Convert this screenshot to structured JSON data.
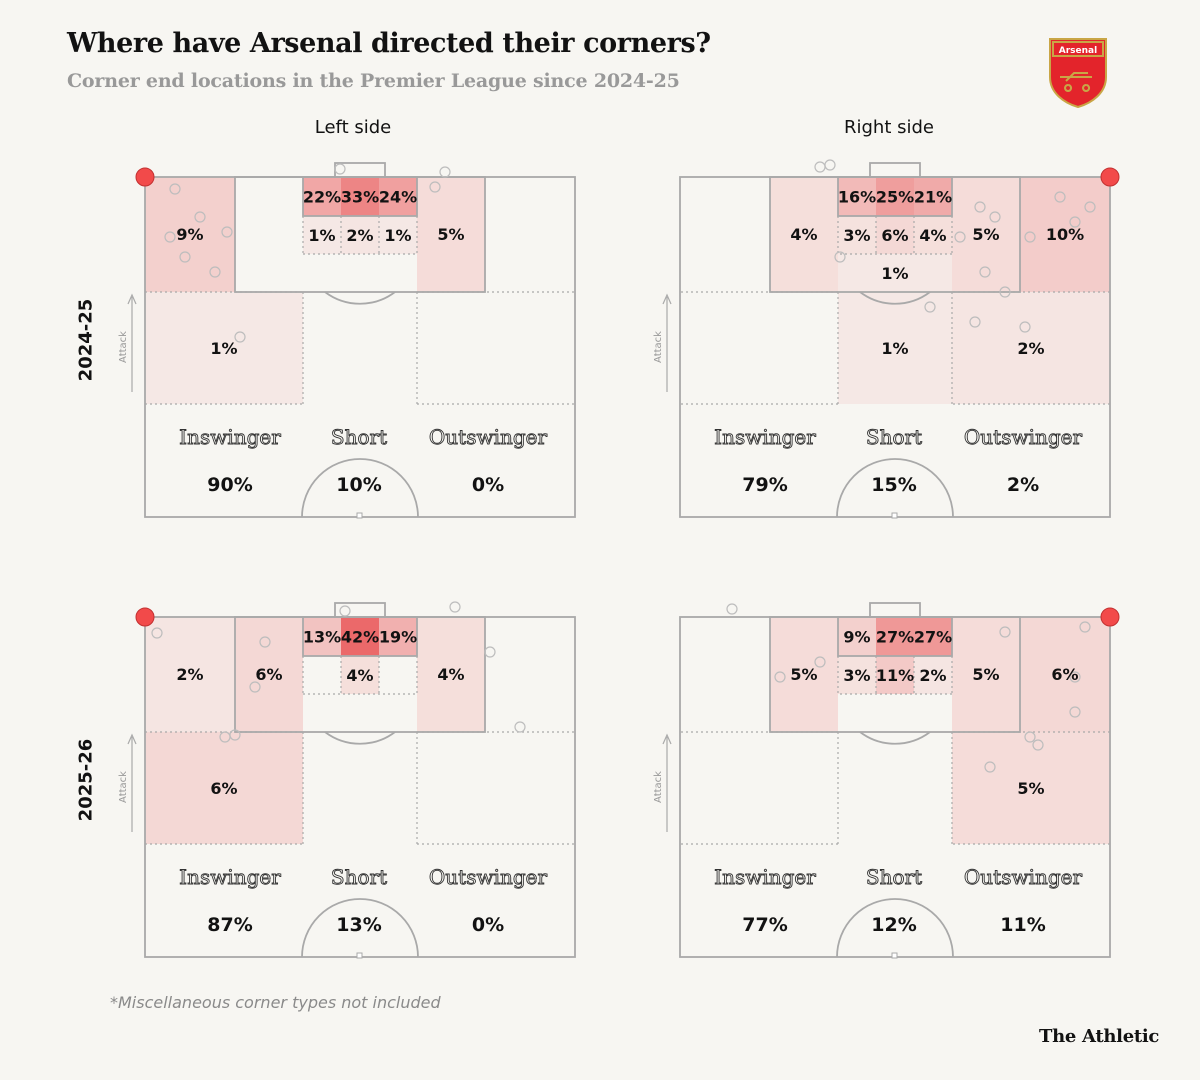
{
  "header": {
    "title": "Where have Arsenal directed their corners?",
    "subtitle": "Corner end locations in the Premier League since 2024-25"
  },
  "crest_text": "Arsenal",
  "columns": [
    "Left side",
    "Right side"
  ],
  "rows": [
    "2024-25",
    "2025-26"
  ],
  "attack_label": "Attack",
  "footnote": "*Miscellaneous corner types not included",
  "brand": "The Athletic",
  "colors": {
    "corner_dot": "#f24a4a",
    "heat": "#e8484a",
    "line": "#a9a9a9",
    "shot": "#bdbdbd"
  },
  "chart_data": [
    {
      "type": "heatmap",
      "season": "2024-25",
      "side": "Left side",
      "zones": [
        {
          "zone": "near-wide",
          "value": 9
        },
        {
          "zone": "six-near",
          "value": 22
        },
        {
          "zone": "six-mid",
          "value": 33
        },
        {
          "zone": "six-far",
          "value": 24
        },
        {
          "zone": "mid-near",
          "value": 1
        },
        {
          "zone": "mid-mid",
          "value": 2
        },
        {
          "zone": "mid-far",
          "value": 1
        },
        {
          "zone": "far-box",
          "value": 5
        },
        {
          "zone": "short-near",
          "value": 1
        }
      ],
      "types": [
        {
          "name": "Inswinger",
          "value": 90
        },
        {
          "name": "Short",
          "value": 10
        },
        {
          "name": "Outswinger",
          "value": 0
        }
      ]
    },
    {
      "type": "heatmap",
      "season": "2024-25",
      "side": "Right side",
      "zones": [
        {
          "zone": "far-box",
          "value": 4
        },
        {
          "zone": "six-far",
          "value": 16
        },
        {
          "zone": "six-mid",
          "value": 25
        },
        {
          "zone": "six-near",
          "value": 21
        },
        {
          "zone": "mid-far",
          "value": 3
        },
        {
          "zone": "mid-mid",
          "value": 6
        },
        {
          "zone": "mid-near",
          "value": 4
        },
        {
          "zone": "penalty-spot",
          "value": 1
        },
        {
          "zone": "near-box",
          "value": 5
        },
        {
          "zone": "near-wide",
          "value": 10
        },
        {
          "zone": "edge-of-box",
          "value": 1
        },
        {
          "zone": "short-near",
          "value": 2
        }
      ],
      "types": [
        {
          "name": "Inswinger",
          "value": 79
        },
        {
          "name": "Short",
          "value": 15
        },
        {
          "name": "Outswinger",
          "value": 2
        }
      ]
    },
    {
      "type": "heatmap",
      "season": "2025-26",
      "side": "Left side",
      "zones": [
        {
          "zone": "near-wide",
          "value": 2
        },
        {
          "zone": "near-box",
          "value": 6
        },
        {
          "zone": "six-near",
          "value": 13
        },
        {
          "zone": "six-mid",
          "value": 42
        },
        {
          "zone": "six-far",
          "value": 19
        },
        {
          "zone": "mid-mid",
          "value": 4
        },
        {
          "zone": "far-box",
          "value": 4
        },
        {
          "zone": "short-near",
          "value": 6
        }
      ],
      "types": [
        {
          "name": "Inswinger",
          "value": 87
        },
        {
          "name": "Short",
          "value": 13
        },
        {
          "name": "Outswinger",
          "value": 0
        }
      ]
    },
    {
      "type": "heatmap",
      "season": "2025-26",
      "side": "Right side",
      "zones": [
        {
          "zone": "far-box",
          "value": 5
        },
        {
          "zone": "six-far",
          "value": 9
        },
        {
          "zone": "six-mid",
          "value": 27
        },
        {
          "zone": "six-near",
          "value": 27
        },
        {
          "zone": "mid-far",
          "value": 3
        },
        {
          "zone": "mid-mid",
          "value": 11
        },
        {
          "zone": "mid-near",
          "value": 2
        },
        {
          "zone": "near-box",
          "value": 5
        },
        {
          "zone": "near-wide",
          "value": 6
        },
        {
          "zone": "short-near",
          "value": 5
        }
      ],
      "types": [
        {
          "name": "Inswinger",
          "value": 77
        },
        {
          "name": "Short",
          "value": 12
        },
        {
          "name": "Outswinger",
          "value": 11
        }
      ]
    }
  ]
}
